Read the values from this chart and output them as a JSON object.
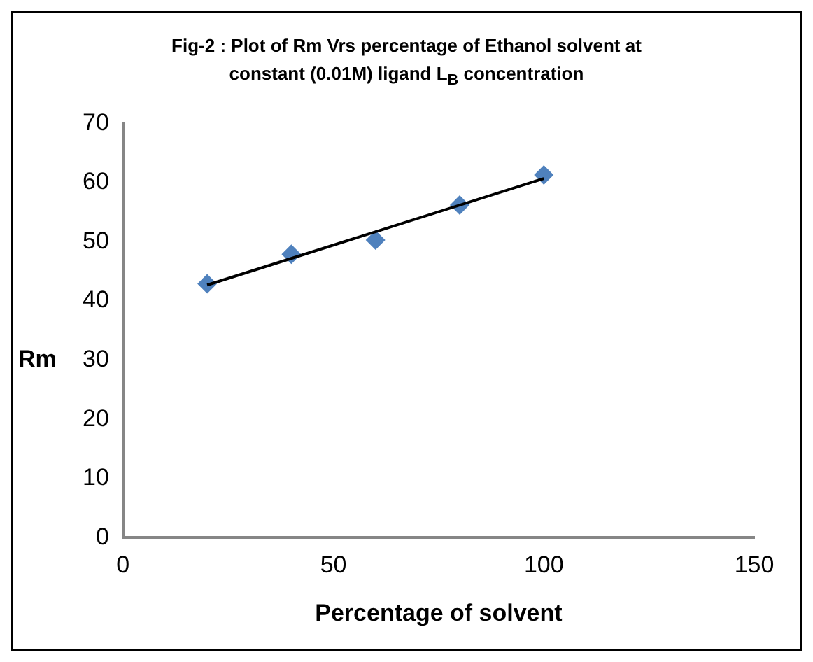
{
  "chart_data": {
    "type": "scatter",
    "title": "Fig-2 :  Plot of Rm Vrs percentage of Ethanol solvent at constant (0.01M) ligand  L$_{B}$ concentration",
    "xlabel": "Percentage of solvent",
    "ylabel": "Rm",
    "marker": "diamond",
    "series": [
      {
        "color": "#4f81bd",
        "x": [
          20,
          40,
          60,
          80,
          100
        ],
        "values": [
          42.9,
          47.9,
          50.3,
          56.2,
          61.3
        ]
      },
      {
        "type": "line",
        "marker": "none",
        "color": "#000000",
        "x": [
          20,
          100
        ],
        "values": [
          42.7,
          60.7
        ]
      }
    ],
    "xlim": [
      0,
      150
    ],
    "xticks": [
      0,
      50,
      100,
      150
    ],
    "ylim": [
      0,
      70
    ],
    "yticks": [
      0,
      10,
      20,
      30,
      40,
      50,
      60,
      70
    ]
  }
}
